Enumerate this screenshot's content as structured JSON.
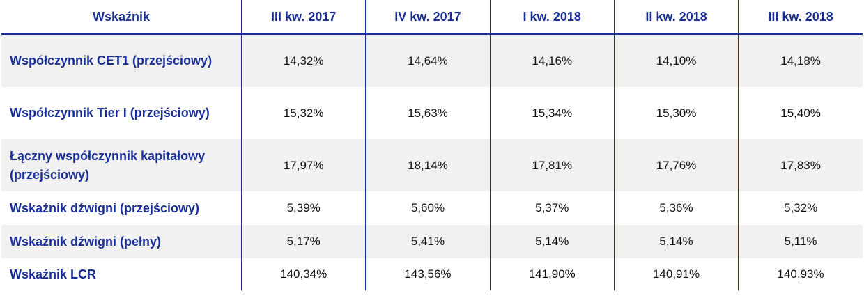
{
  "table": {
    "headers": [
      "Wskaźnik",
      "III kw. 2017",
      "IV kw. 2017",
      "I kw. 2018",
      "II kw. 2018",
      "III kw. 2018"
    ],
    "rows": [
      {
        "label": "Współczynnik CET1 (przejściowy)",
        "values": [
          "14,32%",
          "14,64%",
          "14,16%",
          "14,10%",
          "14,18%"
        ]
      },
      {
        "label": "Współczynnik Tier I (przejściowy)",
        "values": [
          "15,32%",
          "15,63%",
          "15,34%",
          "15,30%",
          "15,40%"
        ]
      },
      {
        "label": "Łączny współczynnik kapitałowy (przejściowy)",
        "values": [
          "17,97%",
          "18,14%",
          "17,81%",
          "17,76%",
          "17,83%"
        ]
      },
      {
        "label": "Wskaźnik dźwigni (przejściowy)",
        "values": [
          "5,39%",
          "5,60%",
          "5,37%",
          "5,36%",
          "5,32%"
        ]
      },
      {
        "label": "Wskaźnik dźwigni (pełny)",
        "values": [
          "5,17%",
          "5,41%",
          "5,14%",
          "5,14%",
          "5,11%"
        ]
      },
      {
        "label": "Wskaźnik LCR",
        "values": [
          "140,34%",
          "143,56%",
          "141,90%",
          "140,91%",
          "140,93%"
        ]
      }
    ]
  },
  "colors": {
    "header_text": "#1a2f96",
    "row_shade": "#f1f1f1",
    "rule": "#1a2f96"
  }
}
